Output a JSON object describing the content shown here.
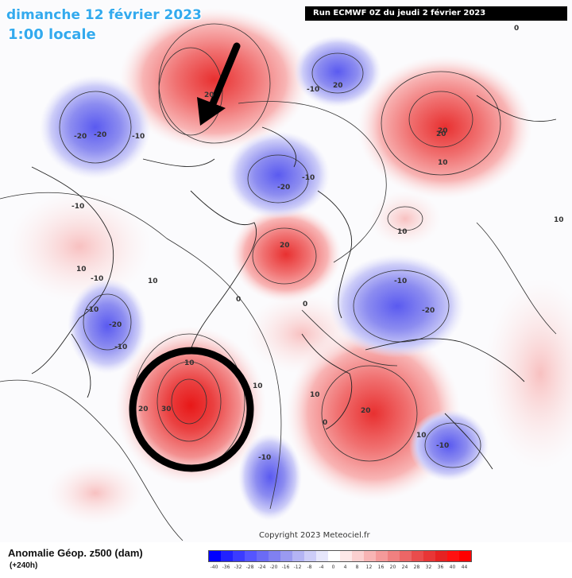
{
  "header": {
    "date_line": "dimanche 12 février 2023",
    "time_line": "1:00 locale",
    "run_info": "Run ECMWF 0Z du jeudi 2 février 2023"
  },
  "legend": {
    "title": "Anomalie Géop. z500 (dam)",
    "lead_time": "(+240h)",
    "scale_values": [
      "-40",
      "-36",
      "-32",
      "-28",
      "-24",
      "-20",
      "-16",
      "-12",
      "-8",
      "-4",
      "0",
      "4",
      "8",
      "12",
      "16",
      "20",
      "24",
      "28",
      "32",
      "36",
      "40",
      "44"
    ],
    "colors": [
      "#0000ff",
      "#2222ff",
      "#3b3bff",
      "#5555ff",
      "#6b6bf5",
      "#8080f0",
      "#9a9af0",
      "#b4b4f4",
      "#cdcdf8",
      "#e6e6fb",
      "#ffffff",
      "#fde8e8",
      "#fbd0d0",
      "#f8b4b4",
      "#f59a9a",
      "#f08080",
      "#ec6666",
      "#ea4c4c",
      "#e83636",
      "#e62222",
      "#ff1111",
      "#ff0000"
    ]
  },
  "copyright": "Copyright 2023 Meteociel.fr",
  "contour_labels": [
    "-20",
    "-10",
    "20",
    "20",
    "-10",
    "-20",
    "-10",
    "20",
    "10",
    "-20",
    "-10",
    "20",
    "10",
    "10",
    "-10",
    "10",
    "10",
    "0",
    "-10",
    "-10",
    "-20",
    "-10",
    "0",
    "20",
    "10",
    "30",
    "20",
    "10",
    "10",
    "-10",
    "20",
    "-20",
    "0",
    "-10",
    "0",
    "10"
  ],
  "annotations": {
    "arrow": "black-arrow",
    "circle": "black-circle"
  }
}
